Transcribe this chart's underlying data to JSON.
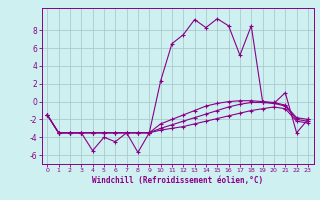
{
  "title": "",
  "xlabel": "Windchill (Refroidissement éolien,°C)",
  "background_color": "#cff0f0",
  "grid_color": "#aacccc",
  "line_color": "#880088",
  "xlim": [
    -0.5,
    23.5
  ],
  "ylim": [
    -7,
    10.5
  ],
  "yticks": [
    -6,
    -4,
    -2,
    0,
    2,
    4,
    6,
    8
  ],
  "xticks": [
    0,
    1,
    2,
    3,
    4,
    5,
    6,
    7,
    8,
    9,
    10,
    11,
    12,
    13,
    14,
    15,
    16,
    17,
    18,
    19,
    20,
    21,
    22,
    23
  ],
  "hours": [
    0,
    1,
    2,
    3,
    4,
    5,
    6,
    7,
    8,
    9,
    10,
    11,
    12,
    13,
    14,
    15,
    16,
    17,
    18,
    19,
    20,
    21,
    22,
    23
  ],
  "line1": [
    -1.5,
    -3.5,
    -3.5,
    -3.5,
    -5.5,
    -4.0,
    -4.5,
    -3.5,
    -5.7,
    -3.5,
    2.3,
    6.5,
    7.5,
    9.2,
    8.3,
    9.3,
    8.5,
    5.2,
    8.5,
    0.0,
    -0.2,
    1.0,
    -3.5,
    -2.0
  ],
  "line2": [
    -1.5,
    -3.5,
    -3.5,
    -3.5,
    -3.5,
    -3.5,
    -3.5,
    -3.5,
    -3.5,
    -3.5,
    -2.5,
    -2.0,
    -1.5,
    -1.0,
    -0.5,
    -0.2,
    0.0,
    0.1,
    0.1,
    0.0,
    -0.1,
    -0.4,
    -1.8,
    -2.0
  ],
  "line3": [
    -1.5,
    -3.5,
    -3.5,
    -3.5,
    -3.5,
    -3.5,
    -3.5,
    -3.5,
    -3.5,
    -3.5,
    -3.0,
    -2.6,
    -2.2,
    -1.8,
    -1.4,
    -1.0,
    -0.6,
    -0.3,
    -0.1,
    -0.1,
    -0.2,
    -0.5,
    -2.0,
    -2.2
  ],
  "line4": [
    -1.5,
    -3.5,
    -3.5,
    -3.5,
    -3.5,
    -3.5,
    -3.5,
    -3.5,
    -3.5,
    -3.5,
    -3.2,
    -3.0,
    -2.8,
    -2.5,
    -2.2,
    -1.9,
    -1.6,
    -1.3,
    -1.0,
    -0.8,
    -0.6,
    -0.8,
    -2.2,
    -2.4
  ]
}
